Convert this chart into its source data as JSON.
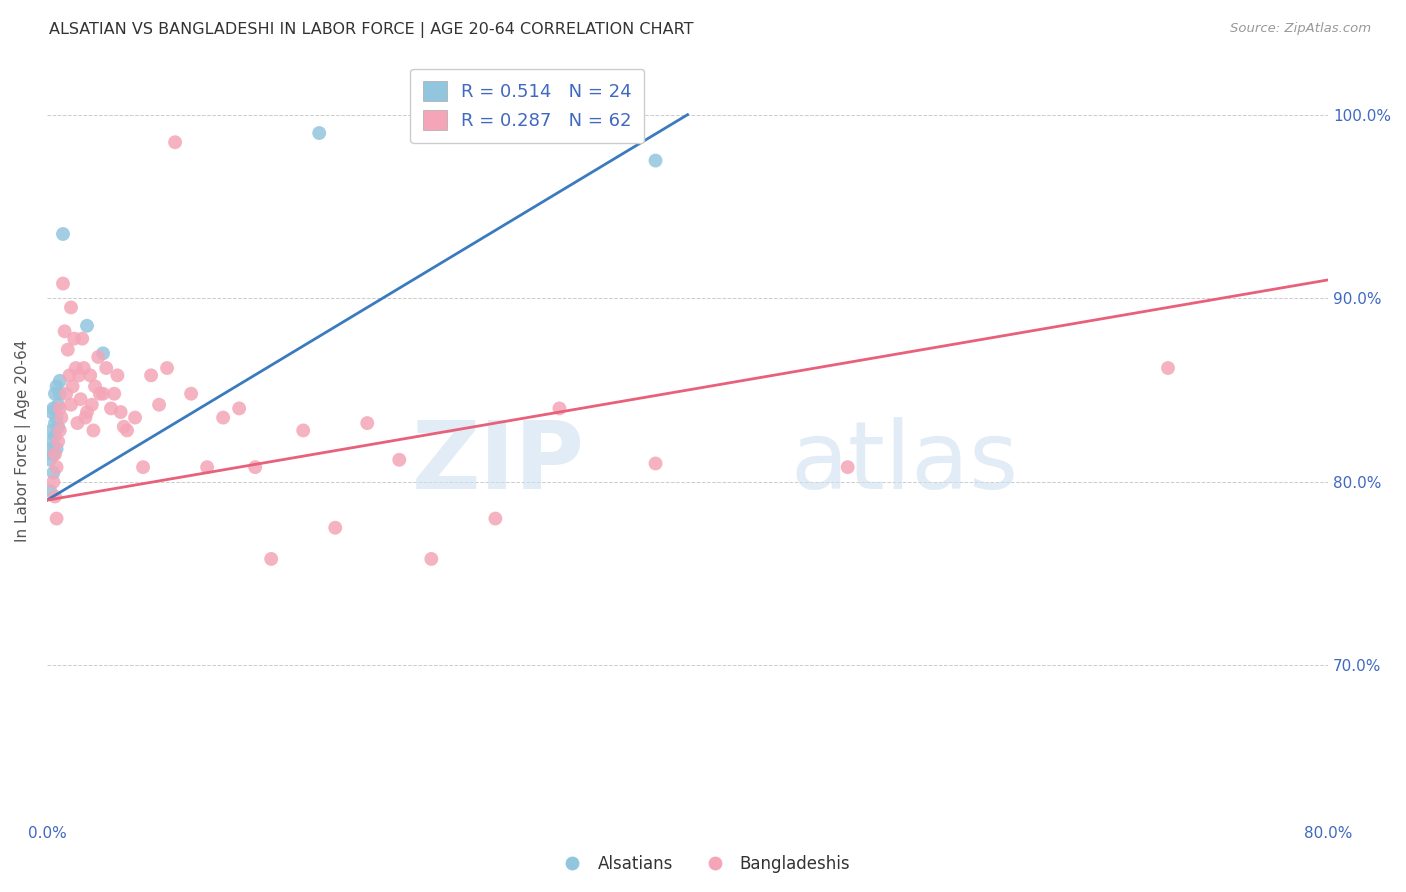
{
  "title": "ALSATIAN VS BANGLADESHI IN LABOR FORCE | AGE 20-64 CORRELATION CHART",
  "source": "Source: ZipAtlas.com",
  "ylabel": "In Labor Force | Age 20-64",
  "xlim": [
    0.0,
    0.8
  ],
  "ylim": [
    0.615,
    1.03
  ],
  "xticks": [
    0.0,
    0.1,
    0.2,
    0.3,
    0.4,
    0.5,
    0.6,
    0.7,
    0.8
  ],
  "xtick_labels": [
    "0.0%",
    "",
    "",
    "",
    "",
    "",
    "",
    "",
    "80.0%"
  ],
  "ytick_labels": [
    "70.0%",
    "80.0%",
    "90.0%",
    "100.0%"
  ],
  "yticks": [
    0.7,
    0.8,
    0.9,
    1.0
  ],
  "legend_blue_r": "R = 0.514",
  "legend_blue_n": "N = 24",
  "legend_pink_r": "R = 0.287",
  "legend_pink_n": "N = 62",
  "blue_color": "#92c5de",
  "pink_color": "#f4a6b8",
  "blue_line_color": "#3a7abf",
  "pink_line_color": "#e8607a",
  "alsatians_x": [
    0.002,
    0.002,
    0.003,
    0.003,
    0.003,
    0.003,
    0.004,
    0.004,
    0.004,
    0.005,
    0.005,
    0.005,
    0.006,
    0.006,
    0.006,
    0.007,
    0.007,
    0.008,
    0.008,
    0.01,
    0.025,
    0.035,
    0.17,
    0.38
  ],
  "alsatians_y": [
    0.795,
    0.812,
    0.818,
    0.822,
    0.828,
    0.838,
    0.805,
    0.815,
    0.84,
    0.825,
    0.832,
    0.848,
    0.818,
    0.835,
    0.852,
    0.83,
    0.842,
    0.848,
    0.855,
    0.935,
    0.885,
    0.87,
    0.99,
    0.975
  ],
  "bangladeshis_x": [
    0.004,
    0.005,
    0.005,
    0.006,
    0.006,
    0.007,
    0.008,
    0.008,
    0.009,
    0.01,
    0.011,
    0.012,
    0.013,
    0.014,
    0.015,
    0.015,
    0.016,
    0.017,
    0.018,
    0.019,
    0.02,
    0.021,
    0.022,
    0.023,
    0.024,
    0.025,
    0.027,
    0.028,
    0.029,
    0.03,
    0.032,
    0.033,
    0.035,
    0.037,
    0.04,
    0.042,
    0.044,
    0.046,
    0.048,
    0.05,
    0.055,
    0.06,
    0.065,
    0.07,
    0.075,
    0.08,
    0.09,
    0.1,
    0.11,
    0.12,
    0.13,
    0.14,
    0.16,
    0.18,
    0.2,
    0.22,
    0.24,
    0.28,
    0.32,
    0.38,
    0.5,
    0.7
  ],
  "bangladeshis_y": [
    0.8,
    0.815,
    0.792,
    0.78,
    0.808,
    0.822,
    0.84,
    0.828,
    0.835,
    0.908,
    0.882,
    0.848,
    0.872,
    0.858,
    0.842,
    0.895,
    0.852,
    0.878,
    0.862,
    0.832,
    0.858,
    0.845,
    0.878,
    0.862,
    0.835,
    0.838,
    0.858,
    0.842,
    0.828,
    0.852,
    0.868,
    0.848,
    0.848,
    0.862,
    0.84,
    0.848,
    0.858,
    0.838,
    0.83,
    0.828,
    0.835,
    0.808,
    0.858,
    0.842,
    0.862,
    0.985,
    0.848,
    0.808,
    0.835,
    0.84,
    0.808,
    0.758,
    0.828,
    0.775,
    0.832,
    0.812,
    0.758,
    0.78,
    0.84,
    0.81,
    0.808,
    0.862
  ]
}
